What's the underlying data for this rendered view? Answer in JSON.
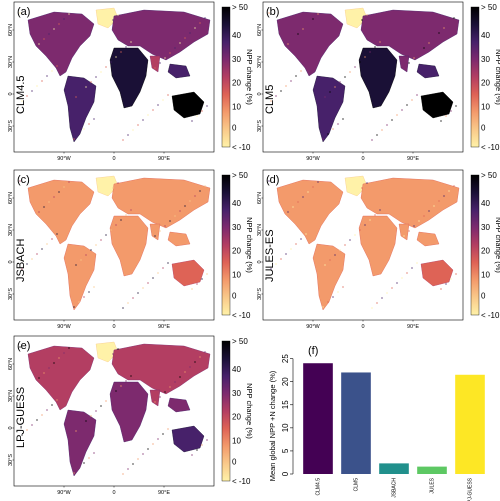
{
  "map_panels": [
    {
      "letter": "(a)",
      "model": "CLM4.5",
      "lat_north": "60°N",
      "lat_mid": "30°N",
      "lat_0": "0",
      "lat_south": "30°S",
      "lon_west": "90°W",
      "lon_0": "0",
      "lon_east": "90°E",
      "cb_max": "> 50",
      "cb_50": "50",
      "cb_40": "40",
      "cb_30": "30",
      "cb_20": "20",
      "cb_10": "10",
      "cb_0": "0",
      "cb_min": "< -10",
      "cb_label": "NPP change (%)"
    },
    {
      "letter": "(b)",
      "model": "CLM5",
      "lat_north": "60°N",
      "lat_mid": "30°N",
      "lat_0": "0",
      "lat_south": "30°S",
      "lon_west": "90°W",
      "lon_0": "0",
      "lon_east": "90°E",
      "cb_max": "> 50",
      "cb_50": "50",
      "cb_40": "40",
      "cb_30": "30",
      "cb_20": "20",
      "cb_10": "10",
      "cb_0": "0",
      "cb_min": "< -10",
      "cb_label": "NPP change (%)"
    },
    {
      "letter": "(c)",
      "model": "JSBACH",
      "lat_north": "60°N",
      "lat_mid": "30°N",
      "lat_0": "0",
      "lat_south": "30°S",
      "lon_west": "90°W",
      "lon_0": "0",
      "lon_east": "90°E",
      "cb_max": "> 50",
      "cb_50": "50",
      "cb_40": "40",
      "cb_30": "30",
      "cb_20": "20",
      "cb_10": "10",
      "cb_0": "0",
      "cb_min": "< -10",
      "cb_label": "NPP change (%)"
    },
    {
      "letter": "(d)",
      "model": "JULES-ES",
      "lat_north": "60°N",
      "lat_mid": "30°N",
      "lat_0": "0",
      "lat_south": "30°S",
      "lon_west": "90°W",
      "lon_0": "0",
      "lon_east": "90°E",
      "cb_max": "> 50",
      "cb_50": "50",
      "cb_40": "40",
      "cb_30": "30",
      "cb_20": "20",
      "cb_10": "10",
      "cb_0": "0",
      "cb_min": "< -10",
      "cb_label": "NPP change (%)"
    },
    {
      "letter": "(e)",
      "model": "LPJ-GUESS",
      "lat_north": "60°N",
      "lat_mid": "30°N",
      "lat_0": "0",
      "lat_south": "30°S",
      "lon_west": "90°W",
      "lon_0": "0",
      "lon_east": "90°E",
      "cb_max": "> 50",
      "cb_50": "50",
      "cb_40": "40",
      "cb_30": "30",
      "cb_20": "20",
      "cb_10": "10",
      "cb_0": "0",
      "cb_min": "< -10",
      "cb_label": "NPP change (%)"
    }
  ],
  "colors": {
    "colorscale": [
      "#fff2a8",
      "#f9c98a",
      "#f39a6b",
      "#de6356",
      "#b33e62",
      "#7d2a6e",
      "#47216a",
      "#1a1036",
      "#000000"
    ],
    "ocean": "#ffffff"
  },
  "chart_data": {
    "type": "bar",
    "panel_letter": "(f)",
    "categories": [
      "CLM4.5",
      "CLM5",
      "JSBACH",
      "JULES",
      "LPJ-GUESS"
    ],
    "values": [
      24,
      22,
      2.3,
      1.6,
      21.5
    ],
    "colors": [
      "#440154",
      "#3b528b",
      "#21908c",
      "#5dc863",
      "#fde725"
    ],
    "ylabel": "Mean global NPP +N change (%)",
    "ylim": [
      0,
      26
    ],
    "yticks": [
      "0",
      "5",
      "10",
      "15",
      "20",
      "25"
    ]
  }
}
